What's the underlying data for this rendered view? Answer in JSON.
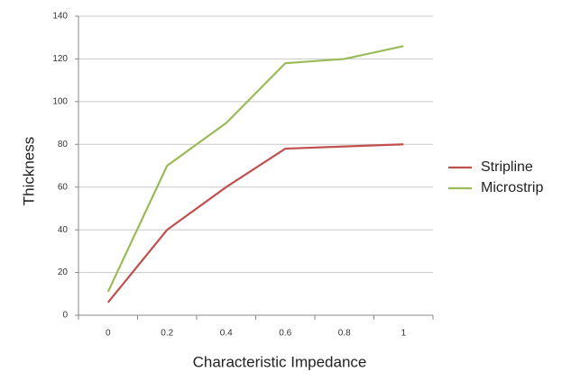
{
  "chart_data": {
    "type": "line",
    "x_label": "Characteristic Impedance",
    "y_label": "Thickness",
    "categories": [
      "0",
      "0.2",
      "0.4",
      "0.6",
      "0.8",
      "1"
    ],
    "series": [
      {
        "name": "Stripline",
        "color": "#c0504d",
        "values": [
          6,
          40,
          60,
          78,
          79,
          80
        ]
      },
      {
        "name": "Microstrip",
        "color": "#9bbb59",
        "values": [
          11,
          70,
          90,
          118,
          120,
          126
        ]
      }
    ],
    "ylim": [
      0,
      140
    ],
    "yticks": [
      0,
      20,
      40,
      60,
      80,
      100,
      120,
      140
    ],
    "grid": true,
    "legend": "right"
  }
}
